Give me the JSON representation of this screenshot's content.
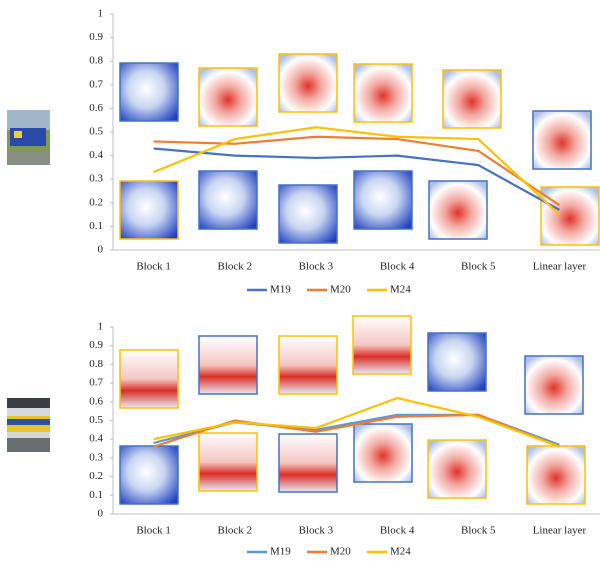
{
  "chart_data": [
    {
      "type": "line",
      "categories": [
        "Block 1",
        "Block 2",
        "Block 3",
        "Block 4",
        "Block 5",
        "Linear layer"
      ],
      "series": [
        {
          "name": "M19",
          "color": "#4472c4",
          "values": [
            0.43,
            0.4,
            0.39,
            0.4,
            0.36,
            0.17
          ]
        },
        {
          "name": "M20",
          "color": "#ed7d31",
          "values": [
            0.46,
            0.45,
            0.48,
            0.47,
            0.42,
            0.19
          ]
        },
        {
          "name": "M24",
          "color": "#ffc000",
          "values": [
            0.33,
            0.47,
            0.52,
            0.48,
            0.47,
            0.15
          ]
        }
      ],
      "ylim": [
        0,
        1
      ],
      "yticks": [
        0,
        0.1,
        0.2,
        0.3,
        0.4,
        0.5,
        0.6,
        0.7,
        0.8,
        0.9,
        1
      ],
      "legend": "bottom"
    },
    {
      "type": "line",
      "categories": [
        "Block 1",
        "Block 2",
        "Block 3",
        "Block 4",
        "Block 5",
        "Linear layer"
      ],
      "series": [
        {
          "name": "M19",
          "color": "#5b9bd5",
          "values": [
            0.38,
            0.49,
            0.45,
            0.53,
            0.53,
            0.37
          ]
        },
        {
          "name": "M20",
          "color": "#ed7d31",
          "values": [
            0.36,
            0.5,
            0.44,
            0.52,
            0.53,
            0.36
          ]
        },
        {
          "name": "M24",
          "color": "#ffc000",
          "values": [
            0.4,
            0.49,
            0.46,
            0.62,
            0.52,
            0.36
          ]
        }
      ],
      "ylim": [
        0,
        1
      ],
      "yticks": [
        0,
        0.1,
        0.2,
        0.3,
        0.4,
        0.5,
        0.6,
        0.7,
        0.8,
        0.9,
        1
      ],
      "legend": "bottom"
    }
  ]
}
